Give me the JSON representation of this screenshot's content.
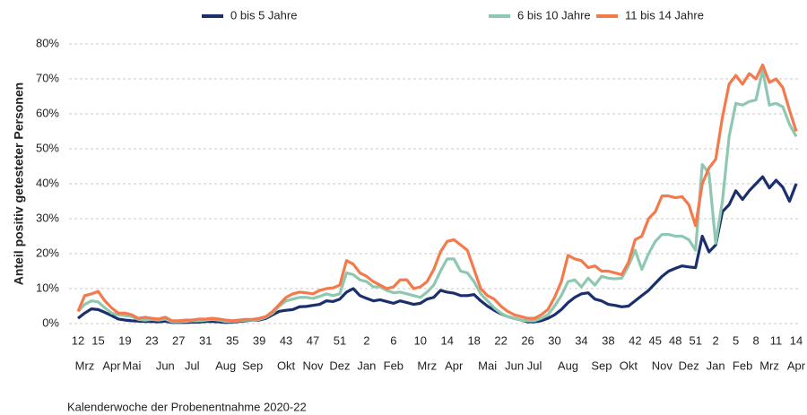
{
  "chart_data": {
    "type": "line",
    "y_label": "Anteil positiv getesteter Personen",
    "x_label": "Kalenderwoche der Probenentnahme 2020-22",
    "categories": [
      "12",
      null,
      null,
      "15",
      null,
      null,
      null,
      "19",
      null,
      null,
      null,
      "23",
      null,
      null,
      null,
      "27",
      null,
      null,
      null,
      "31",
      null,
      null,
      null,
      "35",
      null,
      null,
      null,
      "39",
      null,
      null,
      null,
      "43",
      null,
      null,
      null,
      "47",
      null,
      null,
      null,
      "51",
      null,
      null,
      null,
      "2",
      null,
      null,
      null,
      "6",
      null,
      null,
      null,
      "10",
      null,
      null,
      null,
      "14",
      null,
      null,
      null,
      "18",
      null,
      null,
      null,
      "22",
      null,
      null,
      null,
      "26",
      null,
      null,
      null,
      "30",
      null,
      null,
      null,
      "34",
      null,
      null,
      null,
      "38",
      null,
      null,
      null,
      "42",
      null,
      null,
      "45",
      null,
      null,
      "48",
      null,
      null,
      "51",
      null,
      null,
      "2",
      null,
      null,
      "5",
      null,
      null,
      "8",
      null,
      null,
      "11",
      null,
      null,
      "14"
    ],
    "month_categories": [
      null,
      "Mrz",
      null,
      null,
      null,
      "Apr",
      null,
      null,
      "Mai",
      null,
      null,
      null,
      null,
      "Jun",
      null,
      null,
      null,
      "Jul",
      null,
      null,
      null,
      null,
      "Aug",
      null,
      null,
      null,
      "Sep",
      null,
      null,
      null,
      null,
      "Okt",
      null,
      null,
      null,
      "Nov",
      null,
      null,
      null,
      "Dez",
      null,
      null,
      null,
      "Jan",
      null,
      null,
      null,
      "Feb",
      null,
      null,
      null,
      null,
      "Mrz",
      null,
      null,
      null,
      "Apr",
      null,
      null,
      null,
      null,
      "Mai",
      null,
      null,
      null,
      "Jun",
      null,
      null,
      "Jul",
      null,
      null,
      null,
      null,
      "Aug",
      null,
      null,
      null,
      null,
      "Sep",
      null,
      null,
      null,
      "Okt",
      null,
      null,
      null,
      null,
      "Nov",
      null,
      null,
      null,
      "Dez",
      null,
      null,
      null,
      "Jan",
      null,
      null,
      null,
      "Feb",
      null,
      null,
      null,
      "Mrz",
      null,
      null,
      null,
      "Apr"
    ],
    "series": [
      {
        "name": "0 bis 5 Jahre",
        "color": "#1b2f6e",
        "values": [
          1.5,
          3,
          4.2,
          4,
          3.2,
          2.3,
          1.3,
          1.0,
          0.8,
          0.7,
          0.6,
          0.6,
          0.5,
          0.7,
          0.3,
          0.3,
          0.3,
          0.4,
          0.4,
          0.6,
          0.6,
          0.5,
          0.3,
          0.4,
          0.6,
          0.8,
          1.0,
          1.0,
          1.5,
          2.5,
          3.5,
          3.8,
          4.0,
          4.8,
          4.9,
          5.2,
          5.5,
          6.5,
          6.3,
          7.0,
          9.0,
          10.0,
          8,
          7.2,
          6.5,
          6.8,
          6.3,
          5.8,
          6.5,
          6.0,
          5.5,
          5.8,
          7.0,
          7.5,
          9.5,
          9.0,
          8.7,
          8.0,
          8.0,
          8.3,
          6.5,
          5.0,
          3.8,
          2.8,
          2.0,
          1.5,
          1.0,
          0.5,
          0.5,
          0.8,
          1.5,
          2.5,
          4.0,
          6.0,
          7.5,
          8.5,
          8.8,
          7.0,
          6.5,
          5.5,
          5.2,
          4.8,
          5.0,
          6.5,
          8.0,
          9.5,
          11.5,
          13.5,
          15.0,
          15.8,
          16.5,
          16.2,
          16.0,
          25,
          20.5,
          22.5,
          32,
          34,
          38,
          35.5,
          38,
          40,
          42,
          38.8,
          41,
          39,
          35,
          40
        ]
      },
      {
        "name": "6 bis 10 Jahre",
        "color": "#8ec8b0",
        "values": [
          3.5,
          5.5,
          6.5,
          6.2,
          4.5,
          3.0,
          2.5,
          2.3,
          2.0,
          1.2,
          1.0,
          1.2,
          1.0,
          1.3,
          0.5,
          0.5,
          0.6,
          0.8,
          0.8,
          1.0,
          1.2,
          1.0,
          0.6,
          0.6,
          0.8,
          1.0,
          1.0,
          1.2,
          1.8,
          3.0,
          5.0,
          6.5,
          7.0,
          7.5,
          7.5,
          7.2,
          7.8,
          8.5,
          8.0,
          8.5,
          14.5,
          14.0,
          12.5,
          12.0,
          10.5,
          10.5,
          9.5,
          8.8,
          9.0,
          8.5,
          8.0,
          7.5,
          9.0,
          11.0,
          15.0,
          18.5,
          18.5,
          15.0,
          14.5,
          12.0,
          8.5,
          6.5,
          4.5,
          3.0,
          2.0,
          1.5,
          1.0,
          0.8,
          0.8,
          1.5,
          2.5,
          5.0,
          8.0,
          12.0,
          12.5,
          10.5,
          13.0,
          11.0,
          13.5,
          13.0,
          12.8,
          13.0,
          16.5,
          21.0,
          15.5,
          20.0,
          23.5,
          25.5,
          25.5,
          25.0,
          25.0,
          24.0,
          21.0,
          45.5,
          43,
          23,
          35,
          53.5,
          63,
          62.5,
          63.5,
          64,
          72.5,
          62.5,
          63,
          62,
          57,
          53.5
        ]
      },
      {
        "name": "11 bis 14 Jahre",
        "color": "#f47a4c",
        "values": [
          3.5,
          8,
          8.5,
          9.2,
          6.5,
          4.5,
          3.0,
          3.0,
          2.5,
          1.5,
          1.8,
          1.5,
          1.3,
          1.8,
          0.8,
          0.8,
          1.0,
          1.0,
          1.3,
          1.3,
          1.5,
          1.3,
          1.0,
          0.8,
          1.0,
          1.2,
          1.2,
          1.5,
          2.0,
          3.5,
          5.5,
          7.5,
          8.5,
          9.0,
          8.8,
          8.5,
          9.5,
          10.0,
          10.2,
          11.0,
          18.0,
          17.0,
          14.5,
          13.5,
          12.0,
          11.0,
          10.0,
          10.5,
          12.5,
          12.5,
          10.0,
          10.5,
          12.0,
          15.5,
          20.5,
          23.5,
          24.0,
          22.5,
          21.0,
          15.5,
          10.0,
          8.0,
          7.0,
          5.0,
          3.5,
          2.5,
          2.0,
          1.5,
          1.5,
          2.5,
          4.0,
          7.5,
          12,
          19.5,
          18.5,
          18,
          16,
          16.5,
          15,
          15,
          14.5,
          14,
          17.5,
          24,
          25,
          30,
          32,
          36.5,
          36.5,
          36,
          36.3,
          34,
          28,
          40,
          44.5,
          47,
          59,
          68.5,
          71,
          68.5,
          71.5,
          70,
          74,
          69,
          70,
          67.5,
          61,
          55
        ]
      }
    ],
    "ylim": [
      0,
      80
    ],
    "yticks": [
      {
        "value": 0,
        "label": "0%"
      },
      {
        "value": 10,
        "label": "10%"
      },
      {
        "value": 20,
        "label": "20%"
      },
      {
        "value": 30,
        "label": "30%"
      },
      {
        "value": 40,
        "label": "40%"
      },
      {
        "value": 50,
        "label": "50%"
      },
      {
        "value": 60,
        "label": "60%"
      },
      {
        "value": 70,
        "label": "70%"
      },
      {
        "value": 80,
        "label": "80%"
      }
    ],
    "grid": true,
    "legend": "top"
  }
}
